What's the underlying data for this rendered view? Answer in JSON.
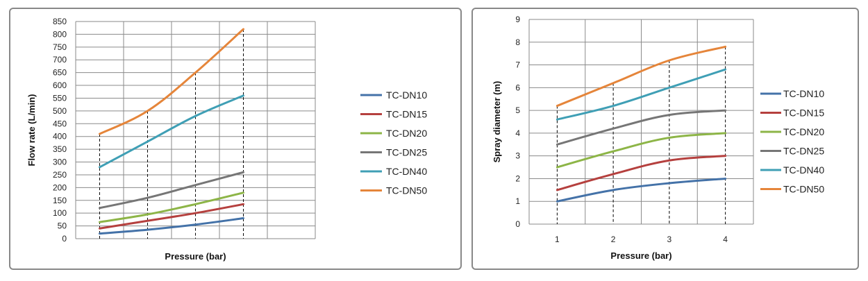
{
  "chart_data": [
    {
      "type": "line",
      "xlabel": "Pressure (bar)",
      "ylabel": "Flow rate (L/min)",
      "ylim": [
        0,
        850
      ],
      "yticks": [
        "0",
        "50",
        "100",
        "150",
        "200",
        "250",
        "300",
        "350",
        "400",
        "450",
        "500",
        "550",
        "600",
        "650",
        "700",
        "750",
        "800",
        "850"
      ],
      "xticks": [
        "",
        "",
        "",
        "",
        ""
      ],
      "x": [
        1,
        2,
        3,
        4
      ],
      "xlim": [
        0.5,
        5.5
      ],
      "grid": true,
      "legend_position": "right",
      "series": [
        {
          "name": "TC-DN10",
          "color": "#4472a8",
          "values": [
            20,
            35,
            55,
            80
          ]
        },
        {
          "name": "TC-DN15",
          "color": "#b5403e",
          "values": [
            40,
            70,
            100,
            135
          ]
        },
        {
          "name": "TC-DN20",
          "color": "#8db547",
          "values": [
            65,
            95,
            135,
            180
          ]
        },
        {
          "name": "TC-DN25",
          "color": "#767676",
          "values": [
            120,
            160,
            210,
            260
          ]
        },
        {
          "name": "TC-DN40",
          "color": "#3f9fb5",
          "values": [
            280,
            380,
            480,
            560
          ]
        },
        {
          "name": "TC-DN50",
          "color": "#e5853a",
          "values": [
            410,
            500,
            650,
            820
          ]
        }
      ]
    },
    {
      "type": "line",
      "xlabel": "Pressure (bar)",
      "ylabel": "Spray diameter (m)",
      "ylim": [
        0,
        9
      ],
      "yticks": [
        "0",
        "1",
        "2",
        "3",
        "4",
        "5",
        "6",
        "7",
        "8",
        "9"
      ],
      "xticks": [
        "1",
        "2",
        "3",
        "4"
      ],
      "x": [
        1,
        2,
        3,
        4
      ],
      "xlim": [
        0.5,
        4.5
      ],
      "grid": true,
      "legend_position": "right",
      "series": [
        {
          "name": "TC-DN10",
          "color": "#4472a8",
          "values": [
            1.0,
            1.5,
            1.8,
            2.0
          ]
        },
        {
          "name": "TC-DN15",
          "color": "#b5403e",
          "values": [
            1.5,
            2.2,
            2.8,
            3.0
          ]
        },
        {
          "name": "TC-DN20",
          "color": "#8db547",
          "values": [
            2.5,
            3.2,
            3.8,
            4.0
          ]
        },
        {
          "name": "TC-DN25",
          "color": "#767676",
          "values": [
            3.5,
            4.2,
            4.8,
            5.0
          ]
        },
        {
          "name": "TC-DN40",
          "color": "#3f9fb5",
          "values": [
            4.6,
            5.2,
            6.0,
            6.8
          ]
        },
        {
          "name": "TC-DN50",
          "color": "#e5853a",
          "values": [
            5.2,
            6.2,
            7.2,
            7.8
          ]
        }
      ]
    }
  ]
}
